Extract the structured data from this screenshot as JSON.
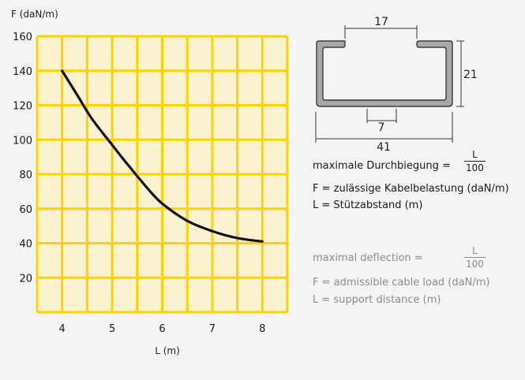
{
  "chart_data": {
    "type": "line",
    "ylabel": "F (daN/m)",
    "xlabel": "L (m)",
    "x_ticks": [
      4,
      5,
      6,
      7,
      8
    ],
    "y_ticks": [
      20,
      40,
      60,
      80,
      100,
      120,
      140,
      160
    ],
    "xlim": [
      3.5,
      8.5
    ],
    "ylim": [
      0,
      160
    ],
    "grid": true,
    "series": [
      {
        "x": [
          4.0,
          4.3,
          4.6,
          5.0,
          5.3,
          5.7,
          6.0,
          6.5,
          7.0,
          7.5,
          8.0
        ],
        "values": [
          140,
          126,
          112,
          97,
          86,
          72,
          63,
          53,
          47,
          43,
          41
        ]
      }
    ]
  },
  "profile": {
    "dim_top": "17",
    "dim_height": "21",
    "dim_slot": "7",
    "dim_width": "41"
  },
  "german": {
    "deflection_label": "maximale Durchbiegung =",
    "frac_num": "L",
    "frac_den": "100",
    "line_f": "F = zulässige Kabelbelastung (daN/m)",
    "line_l": "L = Stützabstand (m)"
  },
  "english": {
    "deflection_label": "maximal deflection =",
    "frac_num": "L",
    "frac_den": "100",
    "line_f": "F = admissible cable load (daN/m)",
    "line_l": "L = support distance (m)"
  },
  "colors": {
    "grid": "#ffd200",
    "plot_bg": "#fbf3d0",
    "curve": "#111111",
    "profile_fill": "#a8a8a8",
    "profile_stroke": "#3a3a3a"
  }
}
